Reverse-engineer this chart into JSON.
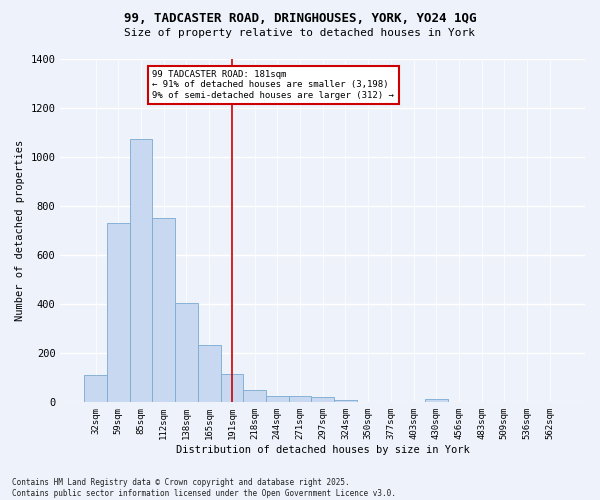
{
  "title1": "99, TADCASTER ROAD, DRINGHOUSES, YORK, YO24 1QG",
  "title2": "Size of property relative to detached houses in York",
  "xlabel": "Distribution of detached houses by size in York",
  "ylabel": "Number of detached properties",
  "categories": [
    "32sqm",
    "59sqm",
    "85sqm",
    "112sqm",
    "138sqm",
    "165sqm",
    "191sqm",
    "218sqm",
    "244sqm",
    "271sqm",
    "297sqm",
    "324sqm",
    "350sqm",
    "377sqm",
    "403sqm",
    "430sqm",
    "456sqm",
    "483sqm",
    "509sqm",
    "536sqm",
    "562sqm"
  ],
  "values": [
    110,
    730,
    1075,
    750,
    405,
    235,
    115,
    50,
    25,
    25,
    20,
    10,
    0,
    0,
    0,
    12,
    0,
    0,
    0,
    0,
    0
  ],
  "bar_color": "#c8d8f0",
  "bar_edge_color": "#7aaad0",
  "vline_x": 6,
  "vline_color": "#cc0000",
  "annotation_text": "99 TADCASTER ROAD: 181sqm\n← 91% of detached houses are smaller (3,198)\n9% of semi-detached houses are larger (312) →",
  "annotation_box_color": "#ffffff",
  "annotation_box_edge": "#cc0000",
  "background_color": "#eef2fb",
  "grid_color": "#ffffff",
  "footer": "Contains HM Land Registry data © Crown copyright and database right 2025.\nContains public sector information licensed under the Open Government Licence v3.0.",
  "ylim": [
    0,
    1400
  ]
}
